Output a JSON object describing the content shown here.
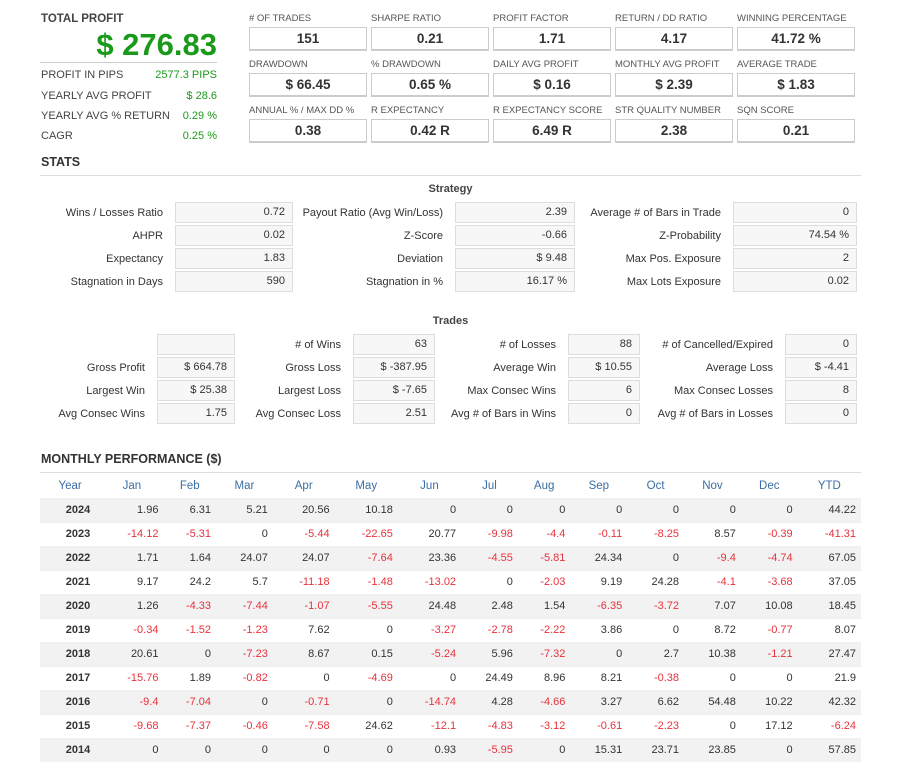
{
  "summary": {
    "title": "TOTAL PROFIT",
    "value": "$ 276.83",
    "rows": [
      {
        "label": "PROFIT IN PIPS",
        "value": "2577.3 PIPS"
      },
      {
        "label": "YEARLY AVG PROFIT",
        "value": "$ 28.6"
      },
      {
        "label": "YEARLY AVG % RETURN",
        "value": "0.29 %"
      },
      {
        "label": "CAGR",
        "value": "0.25 %"
      }
    ]
  },
  "metrics": [
    [
      {
        "label": "# OF TRADES",
        "value": "151"
      },
      {
        "label": "SHARPE RATIO",
        "value": "0.21"
      },
      {
        "label": "PROFIT FACTOR",
        "value": "1.71"
      },
      {
        "label": "RETURN / DD RATIO",
        "value": "4.17"
      },
      {
        "label": "WINNING PERCENTAGE",
        "value": "41.72 %"
      }
    ],
    [
      {
        "label": "DRAWDOWN",
        "value": "$ 66.45"
      },
      {
        "label": "% DRAWDOWN",
        "value": "0.65 %"
      },
      {
        "label": "DAILY AVG PROFIT",
        "value": "$ 0.16"
      },
      {
        "label": "MONTHLY AVG PROFIT",
        "value": "$ 2.39"
      },
      {
        "label": "AVERAGE TRADE",
        "value": "$ 1.83"
      }
    ],
    [
      {
        "label": "ANNUAL % / MAX DD %",
        "value": "0.38"
      },
      {
        "label": "R EXPECTANCY",
        "value": "0.42 R"
      },
      {
        "label": "R EXPECTANCY SCORE",
        "value": "6.49 R"
      },
      {
        "label": "STR QUALITY NUMBER",
        "value": "2.38"
      },
      {
        "label": "SQN SCORE",
        "value": "0.21"
      }
    ]
  ],
  "stats": {
    "title": "STATS",
    "strategy_title": "Strategy",
    "strategy": [
      [
        {
          "label": "Wins / Losses Ratio",
          "value": "0.72"
        },
        {
          "label": "Payout Ratio (Avg Win/Loss)",
          "value": "2.39"
        },
        {
          "label": "Average # of Bars in Trade",
          "value": "0"
        }
      ],
      [
        {
          "label": "AHPR",
          "value": "0.02"
        },
        {
          "label": "Z-Score",
          "value": "-0.66"
        },
        {
          "label": "Z-Probability",
          "value": "74.54 %"
        }
      ],
      [
        {
          "label": "Expectancy",
          "value": "1.83"
        },
        {
          "label": "Deviation",
          "value": "$ 9.48"
        },
        {
          "label": "Max Pos. Exposure",
          "value": "2"
        }
      ],
      [
        {
          "label": "Stagnation in Days",
          "value": "590"
        },
        {
          "label": "Stagnation in %",
          "value": "16.17 %"
        },
        {
          "label": "Max Lots Exposure",
          "value": "0.02"
        }
      ]
    ],
    "trades_title": "Trades",
    "trades": [
      [
        {
          "label": "",
          "value": ""
        },
        {
          "label": "# of Wins",
          "value": "63"
        },
        {
          "label": "# of Losses",
          "value": "88"
        },
        {
          "label": "# of Cancelled/Expired",
          "value": "0"
        }
      ],
      [
        {
          "label": "Gross Profit",
          "value": "$ 664.78"
        },
        {
          "label": "Gross Loss",
          "value": "$ -387.95"
        },
        {
          "label": "Average Win",
          "value": "$ 10.55"
        },
        {
          "label": "Average Loss",
          "value": "$ -4.41"
        }
      ],
      [
        {
          "label": "Largest Win",
          "value": "$ 25.38"
        },
        {
          "label": "Largest Loss",
          "value": "$ -7.65"
        },
        {
          "label": "Max Consec Wins",
          "value": "6"
        },
        {
          "label": "Max Consec Losses",
          "value": "8"
        }
      ],
      [
        {
          "label": "Avg Consec Wins",
          "value": "1.75"
        },
        {
          "label": "Avg Consec Loss",
          "value": "2.51"
        },
        {
          "label": "Avg # of Bars in Wins",
          "value": "0"
        },
        {
          "label": "Avg # of Bars in Losses",
          "value": "0"
        }
      ]
    ]
  },
  "monthly": {
    "title": "MONTHLY PERFORMANCE ($)",
    "headers": [
      "Year",
      "Jan",
      "Feb",
      "Mar",
      "Apr",
      "May",
      "Jun",
      "Jul",
      "Aug",
      "Sep",
      "Oct",
      "Nov",
      "Dec",
      "YTD"
    ],
    "rows": [
      [
        "2024",
        "1.96",
        "6.31",
        "5.21",
        "20.56",
        "10.18",
        "0",
        "0",
        "0",
        "0",
        "0",
        "0",
        "0",
        "44.22"
      ],
      [
        "2023",
        "-14.12",
        "-5.31",
        "0",
        "-5.44",
        "-22.65",
        "20.77",
        "-9.98",
        "-4.4",
        "-0.11",
        "-8.25",
        "8.57",
        "-0.39",
        "-41.31"
      ],
      [
        "2022",
        "1.71",
        "1.64",
        "24.07",
        "24.07",
        "-7.64",
        "23.36",
        "-4.55",
        "-5.81",
        "24.34",
        "0",
        "-9.4",
        "-4.74",
        "67.05"
      ],
      [
        "2021",
        "9.17",
        "24.2",
        "5.7",
        "-11.18",
        "-1.48",
        "-13.02",
        "0",
        "-2.03",
        "9.19",
        "24.28",
        "-4.1",
        "-3.68",
        "37.05"
      ],
      [
        "2020",
        "1.26",
        "-4.33",
        "-7.44",
        "-1.07",
        "-5.55",
        "24.48",
        "2.48",
        "1.54",
        "-6.35",
        "-3.72",
        "7.07",
        "10.08",
        "18.45"
      ],
      [
        "2019",
        "-0.34",
        "-1.52",
        "-1.23",
        "7.62",
        "0",
        "-3.27",
        "-2.78",
        "-2.22",
        "3.86",
        "0",
        "8.72",
        "-0.77",
        "8.07"
      ],
      [
        "2018",
        "20.61",
        "0",
        "-7.23",
        "8.67",
        "0.15",
        "-5.24",
        "5.96",
        "-7.32",
        "0",
        "2.7",
        "10.38",
        "-1.21",
        "27.47"
      ],
      [
        "2017",
        "-15.76",
        "1.89",
        "-0.82",
        "0",
        "-4.69",
        "0",
        "24.49",
        "8.96",
        "8.21",
        "-0.38",
        "0",
        "0",
        "21.9"
      ],
      [
        "2016",
        "-9.4",
        "-7.04",
        "0",
        "-0.71",
        "0",
        "-14.74",
        "4.28",
        "-4.66",
        "3.27",
        "6.62",
        "54.48",
        "10.22",
        "42.32"
      ],
      [
        "2015",
        "-9.68",
        "-7.37",
        "-0.46",
        "-7.58",
        "24.62",
        "-12.1",
        "-4.83",
        "-3.12",
        "-0.61",
        "-2.23",
        "0",
        "17.12",
        "-6.24"
      ],
      [
        "2014",
        "0",
        "0",
        "0",
        "0",
        "0",
        "0.93",
        "-5.95",
        "0",
        "15.31",
        "23.71",
        "23.85",
        "0",
        "57.85"
      ]
    ]
  }
}
